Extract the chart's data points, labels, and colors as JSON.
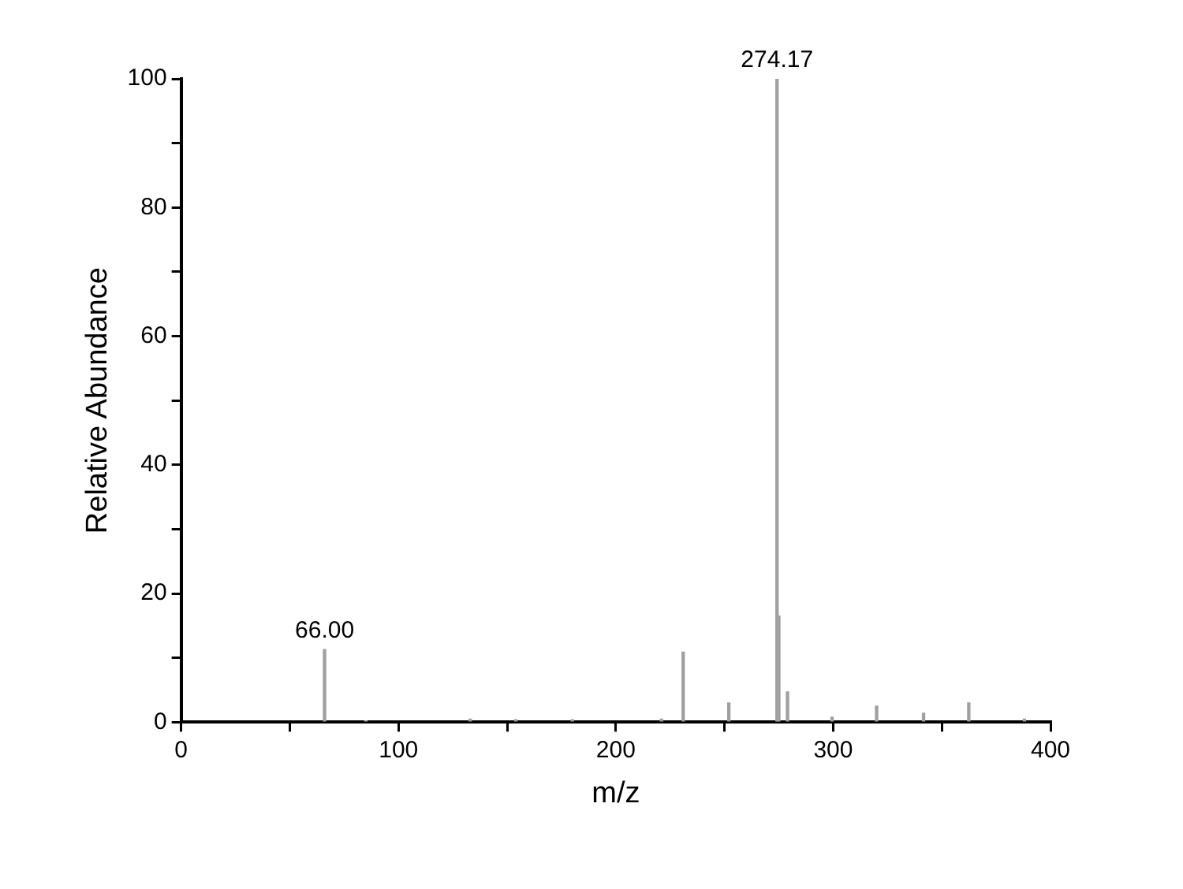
{
  "chart_data": {
    "type": "bar",
    "xlabel": "m/z",
    "ylabel": "Relative Abundance",
    "x": [
      66,
      85,
      133,
      154,
      180,
      221,
      231,
      252,
      274.17,
      275,
      279,
      299.5,
      320,
      341.6,
      362.4,
      388
    ],
    "values": [
      11.3,
      0.2,
      0.5,
      0.4,
      0.4,
      0.5,
      10.9,
      3.0,
      100,
      16.5,
      4.7,
      0.8,
      2.5,
      1.4,
      3.0,
      0.5
    ],
    "color": "#a0a0a0",
    "xlim": [
      0,
      400
    ],
    "xticks": [
      0,
      {
        "value": 50,
        "label": null
      },
      100,
      {
        "value": 150,
        "label": null
      },
      200,
      {
        "value": 250,
        "label": null
      },
      300,
      {
        "value": 350,
        "label": null
      },
      400
    ],
    "ylim": [
      0,
      100
    ],
    "yticks": [
      0,
      {
        "value": 10,
        "label": null
      },
      20,
      {
        "value": 30,
        "label": null
      },
      40,
      {
        "value": 50,
        "label": null
      },
      60,
      {
        "value": 70,
        "label": null
      },
      80,
      {
        "value": 90,
        "label": null
      },
      100
    ],
    "annotations": [
      {
        "text": "66.00",
        "x": 66,
        "y": 11.3
      },
      {
        "text": "274.17",
        "x": 274.17,
        "y": 100
      }
    ],
    "grid": false,
    "legend": false
  }
}
